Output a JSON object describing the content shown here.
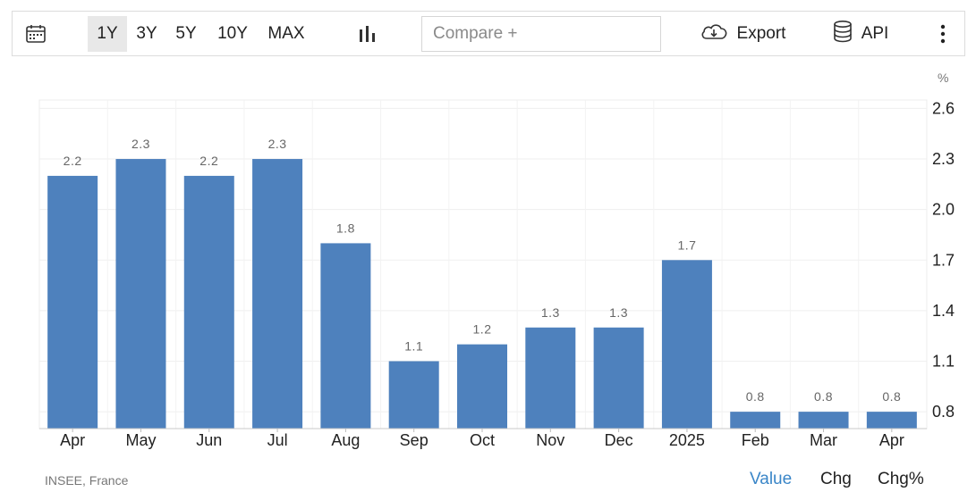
{
  "toolbar": {
    "ranges": [
      "1Y",
      "3Y",
      "5Y",
      "10Y",
      "MAX"
    ],
    "active_range": "1Y",
    "compare_placeholder": "Compare +",
    "export_label": "Export",
    "api_label": "API",
    "icons": {
      "calendar": "calendar-icon",
      "chart_type": "bar-chart-icon",
      "export": "cloud-download-icon",
      "api": "database-icon",
      "more": "vertical-dots-icon"
    }
  },
  "chart_data": {
    "type": "bar",
    "categories": [
      "Apr",
      "May",
      "Jun",
      "Jul",
      "Aug",
      "Sep",
      "Oct",
      "Nov",
      "Dec",
      "2025",
      "Feb",
      "Mar",
      "Apr"
    ],
    "values": [
      2.2,
      2.3,
      2.2,
      2.3,
      1.8,
      1.1,
      1.2,
      1.3,
      1.3,
      1.7,
      0.8,
      0.8,
      0.8
    ],
    "unit": "%",
    "yticks": [
      0.8,
      1.1,
      1.4,
      1.7,
      2.0,
      2.3,
      2.6
    ],
    "ylim": [
      0.7,
      2.65
    ],
    "grid": true,
    "bar_color": "#4e81bd",
    "axis_side": "right"
  },
  "footer": {
    "source": "INSEE, France",
    "tabs": [
      "Value",
      "Chg",
      "Chg%"
    ],
    "active_tab": "Value",
    "active_color": "#3a86c8"
  }
}
